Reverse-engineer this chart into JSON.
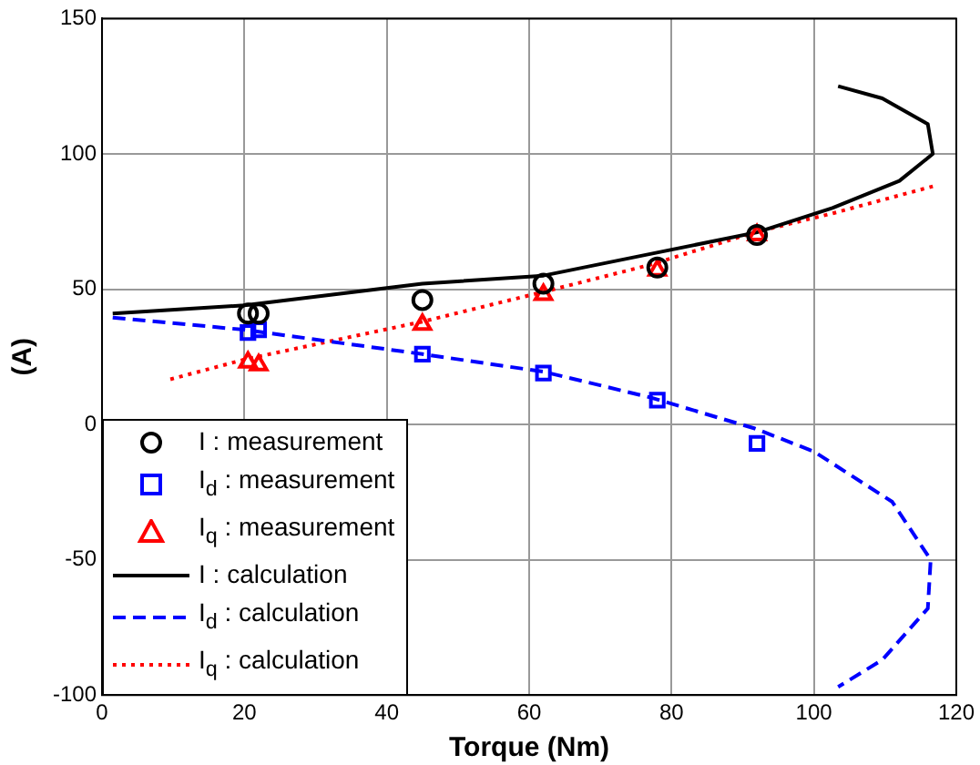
{
  "chart_data": {
    "type": "scatter",
    "xlabel": "Torque (Nm)",
    "ylabel": "(A)",
    "xlim": [
      0,
      120
    ],
    "xticks": [
      0,
      20,
      40,
      60,
      80,
      100,
      120
    ],
    "ylim": [
      -100,
      150
    ],
    "yticks": [
      -100,
      -50,
      0,
      50,
      100,
      150
    ],
    "grid": true,
    "legend": "bottom left",
    "series": [
      {
        "name": "I : measurement",
        "marker": "circle",
        "color": "#000000",
        "x": [
          20.5,
          22,
          45,
          62,
          78,
          92
        ],
        "values": [
          41,
          41,
          46,
          52,
          58,
          70
        ]
      },
      {
        "name": "I$_{d}$ : measurement",
        "marker": "square",
        "color": "#0000ff",
        "x": [
          20.5,
          22,
          45,
          62,
          78,
          92
        ],
        "values": [
          34,
          35,
          26,
          19,
          9,
          -7
        ]
      },
      {
        "name": "I$_{q}$ : measurement",
        "marker": "triangle",
        "color": "#ff0000",
        "x": [
          20.5,
          22,
          45,
          62,
          78,
          92
        ],
        "values": [
          23,
          22,
          37,
          48,
          57,
          70
        ]
      },
      {
        "name": "I : calculation",
        "type": "line",
        "marker": "none",
        "line_style": "solid",
        "color": "#000000",
        "x": [
          1.5,
          20,
          45,
          62,
          77,
          92,
          102.6,
          112,
          116.7,
          116,
          109.6,
          103.4
        ],
        "values": [
          41,
          44,
          52,
          55,
          63,
          71,
          80,
          90,
          100,
          111,
          120.5,
          125
        ]
      },
      {
        "name": "I$_{d}$ : calculation",
        "type": "line",
        "marker": "none",
        "line_style": "dashed",
        "color": "#0000ff",
        "x": [
          1.5,
          20,
          45,
          62,
          77,
          91.7,
          100,
          111,
          116.4,
          116,
          109.6,
          103.4
        ],
        "values": [
          39.5,
          35,
          26,
          19.5,
          10,
          -1.5,
          -10,
          -28.6,
          -50,
          -68,
          -87,
          -97
        ]
      },
      {
        "name": "I$_{q}$ : calculation",
        "type": "line",
        "marker": "none",
        "line_style": "dotted",
        "color": "#ff0000",
        "x": [
          9.6,
          20,
          45,
          62,
          77,
          91.7,
          102.6,
          116.7
        ],
        "values": [
          16.7,
          24,
          38,
          49,
          59,
          71,
          78,
          88
        ]
      }
    ]
  }
}
